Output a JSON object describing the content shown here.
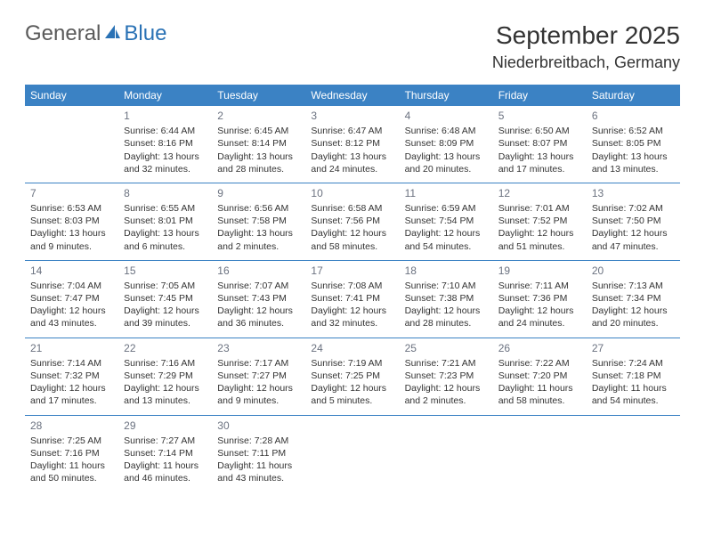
{
  "logo": {
    "text1": "General",
    "text2": "Blue"
  },
  "title": "September 2025",
  "location": "Niederbreitbach, Germany",
  "colors": {
    "header_bg": "#3b82c4",
    "header_text": "#ffffff",
    "border": "#3b82c4",
    "daynum": "#6b7280",
    "body_text": "#333333",
    "logo_gray": "#5a5a5a",
    "logo_blue": "#2a72b5"
  },
  "typography": {
    "title_fontsize": 28,
    "location_fontsize": 18,
    "header_fontsize": 12,
    "cell_fontsize": 10.5,
    "daynum_fontsize": 12
  },
  "day_headers": [
    "Sunday",
    "Monday",
    "Tuesday",
    "Wednesday",
    "Thursday",
    "Friday",
    "Saturday"
  ],
  "weeks": [
    [
      null,
      {
        "n": "1",
        "sr": "Sunrise: 6:44 AM",
        "ss": "Sunset: 8:16 PM",
        "d1": "Daylight: 13 hours",
        "d2": "and 32 minutes."
      },
      {
        "n": "2",
        "sr": "Sunrise: 6:45 AM",
        "ss": "Sunset: 8:14 PM",
        "d1": "Daylight: 13 hours",
        "d2": "and 28 minutes."
      },
      {
        "n": "3",
        "sr": "Sunrise: 6:47 AM",
        "ss": "Sunset: 8:12 PM",
        "d1": "Daylight: 13 hours",
        "d2": "and 24 minutes."
      },
      {
        "n": "4",
        "sr": "Sunrise: 6:48 AM",
        "ss": "Sunset: 8:09 PM",
        "d1": "Daylight: 13 hours",
        "d2": "and 20 minutes."
      },
      {
        "n": "5",
        "sr": "Sunrise: 6:50 AM",
        "ss": "Sunset: 8:07 PM",
        "d1": "Daylight: 13 hours",
        "d2": "and 17 minutes."
      },
      {
        "n": "6",
        "sr": "Sunrise: 6:52 AM",
        "ss": "Sunset: 8:05 PM",
        "d1": "Daylight: 13 hours",
        "d2": "and 13 minutes."
      }
    ],
    [
      {
        "n": "7",
        "sr": "Sunrise: 6:53 AM",
        "ss": "Sunset: 8:03 PM",
        "d1": "Daylight: 13 hours",
        "d2": "and 9 minutes."
      },
      {
        "n": "8",
        "sr": "Sunrise: 6:55 AM",
        "ss": "Sunset: 8:01 PM",
        "d1": "Daylight: 13 hours",
        "d2": "and 6 minutes."
      },
      {
        "n": "9",
        "sr": "Sunrise: 6:56 AM",
        "ss": "Sunset: 7:58 PM",
        "d1": "Daylight: 13 hours",
        "d2": "and 2 minutes."
      },
      {
        "n": "10",
        "sr": "Sunrise: 6:58 AM",
        "ss": "Sunset: 7:56 PM",
        "d1": "Daylight: 12 hours",
        "d2": "and 58 minutes."
      },
      {
        "n": "11",
        "sr": "Sunrise: 6:59 AM",
        "ss": "Sunset: 7:54 PM",
        "d1": "Daylight: 12 hours",
        "d2": "and 54 minutes."
      },
      {
        "n": "12",
        "sr": "Sunrise: 7:01 AM",
        "ss": "Sunset: 7:52 PM",
        "d1": "Daylight: 12 hours",
        "d2": "and 51 minutes."
      },
      {
        "n": "13",
        "sr": "Sunrise: 7:02 AM",
        "ss": "Sunset: 7:50 PM",
        "d1": "Daylight: 12 hours",
        "d2": "and 47 minutes."
      }
    ],
    [
      {
        "n": "14",
        "sr": "Sunrise: 7:04 AM",
        "ss": "Sunset: 7:47 PM",
        "d1": "Daylight: 12 hours",
        "d2": "and 43 minutes."
      },
      {
        "n": "15",
        "sr": "Sunrise: 7:05 AM",
        "ss": "Sunset: 7:45 PM",
        "d1": "Daylight: 12 hours",
        "d2": "and 39 minutes."
      },
      {
        "n": "16",
        "sr": "Sunrise: 7:07 AM",
        "ss": "Sunset: 7:43 PM",
        "d1": "Daylight: 12 hours",
        "d2": "and 36 minutes."
      },
      {
        "n": "17",
        "sr": "Sunrise: 7:08 AM",
        "ss": "Sunset: 7:41 PM",
        "d1": "Daylight: 12 hours",
        "d2": "and 32 minutes."
      },
      {
        "n": "18",
        "sr": "Sunrise: 7:10 AM",
        "ss": "Sunset: 7:38 PM",
        "d1": "Daylight: 12 hours",
        "d2": "and 28 minutes."
      },
      {
        "n": "19",
        "sr": "Sunrise: 7:11 AM",
        "ss": "Sunset: 7:36 PM",
        "d1": "Daylight: 12 hours",
        "d2": "and 24 minutes."
      },
      {
        "n": "20",
        "sr": "Sunrise: 7:13 AM",
        "ss": "Sunset: 7:34 PM",
        "d1": "Daylight: 12 hours",
        "d2": "and 20 minutes."
      }
    ],
    [
      {
        "n": "21",
        "sr": "Sunrise: 7:14 AM",
        "ss": "Sunset: 7:32 PM",
        "d1": "Daylight: 12 hours",
        "d2": "and 17 minutes."
      },
      {
        "n": "22",
        "sr": "Sunrise: 7:16 AM",
        "ss": "Sunset: 7:29 PM",
        "d1": "Daylight: 12 hours",
        "d2": "and 13 minutes."
      },
      {
        "n": "23",
        "sr": "Sunrise: 7:17 AM",
        "ss": "Sunset: 7:27 PM",
        "d1": "Daylight: 12 hours",
        "d2": "and 9 minutes."
      },
      {
        "n": "24",
        "sr": "Sunrise: 7:19 AM",
        "ss": "Sunset: 7:25 PM",
        "d1": "Daylight: 12 hours",
        "d2": "and 5 minutes."
      },
      {
        "n": "25",
        "sr": "Sunrise: 7:21 AM",
        "ss": "Sunset: 7:23 PM",
        "d1": "Daylight: 12 hours",
        "d2": "and 2 minutes."
      },
      {
        "n": "26",
        "sr": "Sunrise: 7:22 AM",
        "ss": "Sunset: 7:20 PM",
        "d1": "Daylight: 11 hours",
        "d2": "and 58 minutes."
      },
      {
        "n": "27",
        "sr": "Sunrise: 7:24 AM",
        "ss": "Sunset: 7:18 PM",
        "d1": "Daylight: 11 hours",
        "d2": "and 54 minutes."
      }
    ],
    [
      {
        "n": "28",
        "sr": "Sunrise: 7:25 AM",
        "ss": "Sunset: 7:16 PM",
        "d1": "Daylight: 11 hours",
        "d2": "and 50 minutes."
      },
      {
        "n": "29",
        "sr": "Sunrise: 7:27 AM",
        "ss": "Sunset: 7:14 PM",
        "d1": "Daylight: 11 hours",
        "d2": "and 46 minutes."
      },
      {
        "n": "30",
        "sr": "Sunrise: 7:28 AM",
        "ss": "Sunset: 7:11 PM",
        "d1": "Daylight: 11 hours",
        "d2": "and 43 minutes."
      },
      null,
      null,
      null,
      null
    ]
  ]
}
